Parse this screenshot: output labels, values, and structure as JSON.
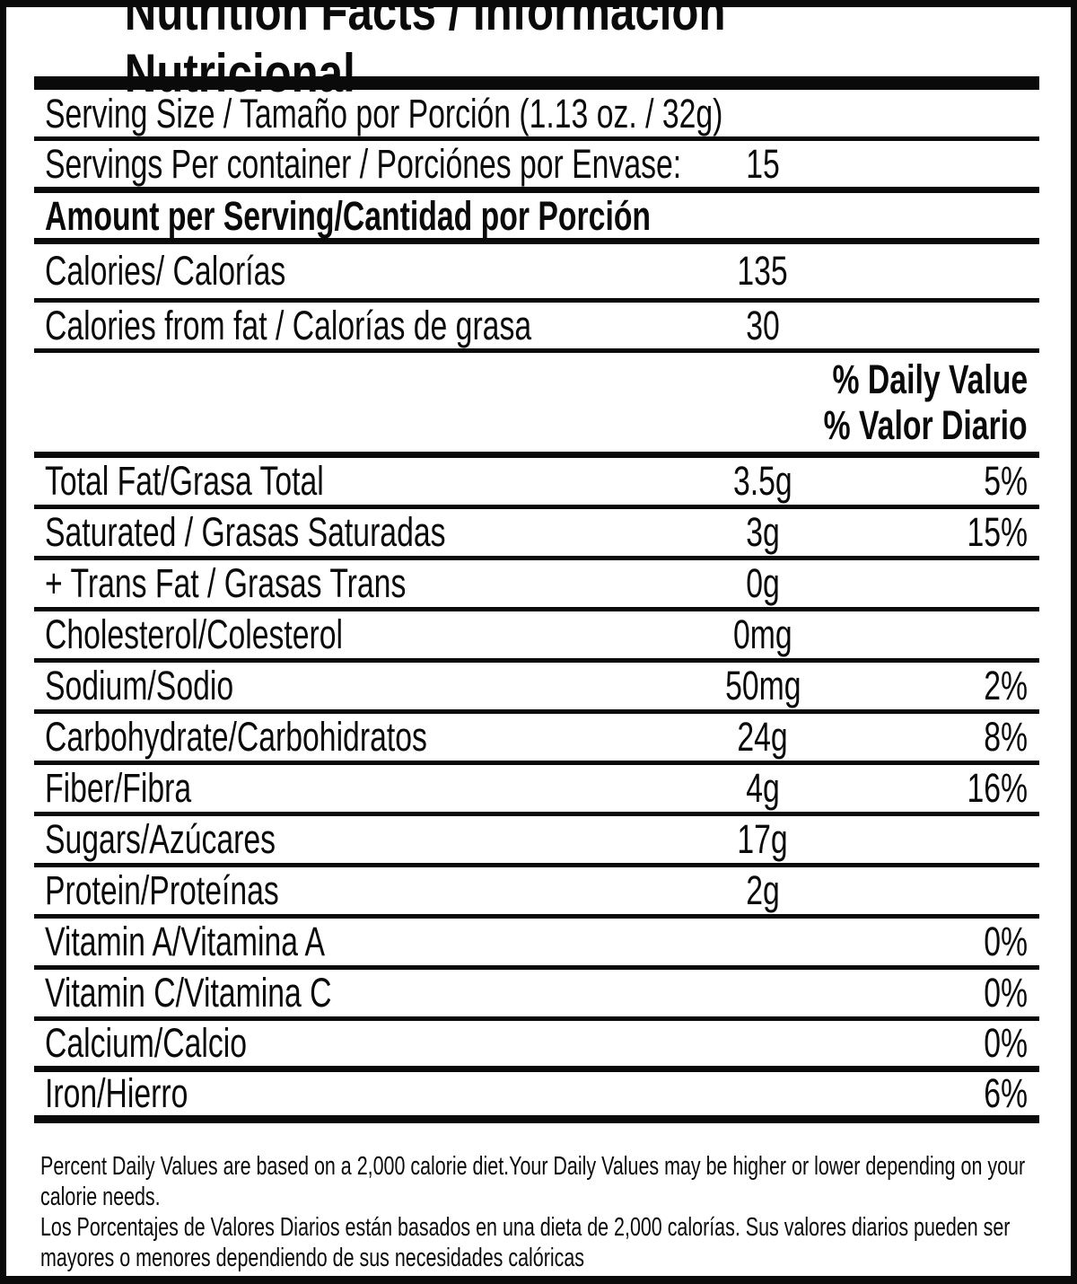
{
  "colors": {
    "ink": "#0a0a0a",
    "background": "#ffffff"
  },
  "label": {
    "title": "Nutrition Facts / Información Nutricional",
    "serving_size": "Serving Size / Tamaño por Porción (1.13 oz. / 32g)",
    "servings_per_container": {
      "label": "Servings Per container / Porciónes por Envase:",
      "value": "15"
    },
    "amount_per_serving": "Amount per Serving/Cantidad por Porción",
    "calories": {
      "label": "Calories/ Calorías",
      "value": "135"
    },
    "calories_from_fat": {
      "label": "Calories from fat / Calorías de grasa",
      "value": "30"
    },
    "daily_value_header_en": "% Daily Value",
    "daily_value_header_es": "% Valor Diario",
    "nutrients": [
      {
        "name": "Total Fat/Grasa Total",
        "amount": "3.5g",
        "dv": "5%"
      },
      {
        "name": "Saturated / Grasas Saturadas",
        "amount": "3g",
        "dv": "15%"
      },
      {
        "name": "+ Trans Fat / Grasas Trans",
        "amount": "0g",
        "dv": ""
      },
      {
        "name": "Cholesterol/Colesterol",
        "amount": "0mg",
        "dv": ""
      },
      {
        "name": "Sodium/Sodio",
        "amount": "50mg",
        "dv": "2%"
      },
      {
        "name": "Carbohydrate/Carbohidratos",
        "amount": "24g",
        "dv": "8%"
      },
      {
        "name": "Fiber/Fibra",
        "amount": "4g",
        "dv": "16%"
      },
      {
        "name": "Sugars/Azúcares",
        "amount": "17g",
        "dv": ""
      },
      {
        "name": "Protein/Proteínas",
        "amount": "2g",
        "dv": ""
      },
      {
        "name": "Vitamin A/Vitamina A",
        "amount": "",
        "dv": "0%"
      },
      {
        "name": "Vitamin C/Vitamina C",
        "amount": "",
        "dv": "0%"
      },
      {
        "name": "Calcium/Calcio",
        "amount": "",
        "dv": "0%"
      },
      {
        "name": "Iron/Hierro",
        "amount": "",
        "dv": "6%"
      }
    ],
    "footnote_en": "Percent Daily Values are based on a 2,000 calorie diet.Your Daily Values may be higher or lower depending on your\ncalorie needs.",
    "footnote_es": "Los Porcentajes de Valores Diarios están basados en una dieta de 2,000 calorías. Sus valores diarios pueden ser\nmayores o menores dependiendo de sus necesidades calóricas"
  }
}
